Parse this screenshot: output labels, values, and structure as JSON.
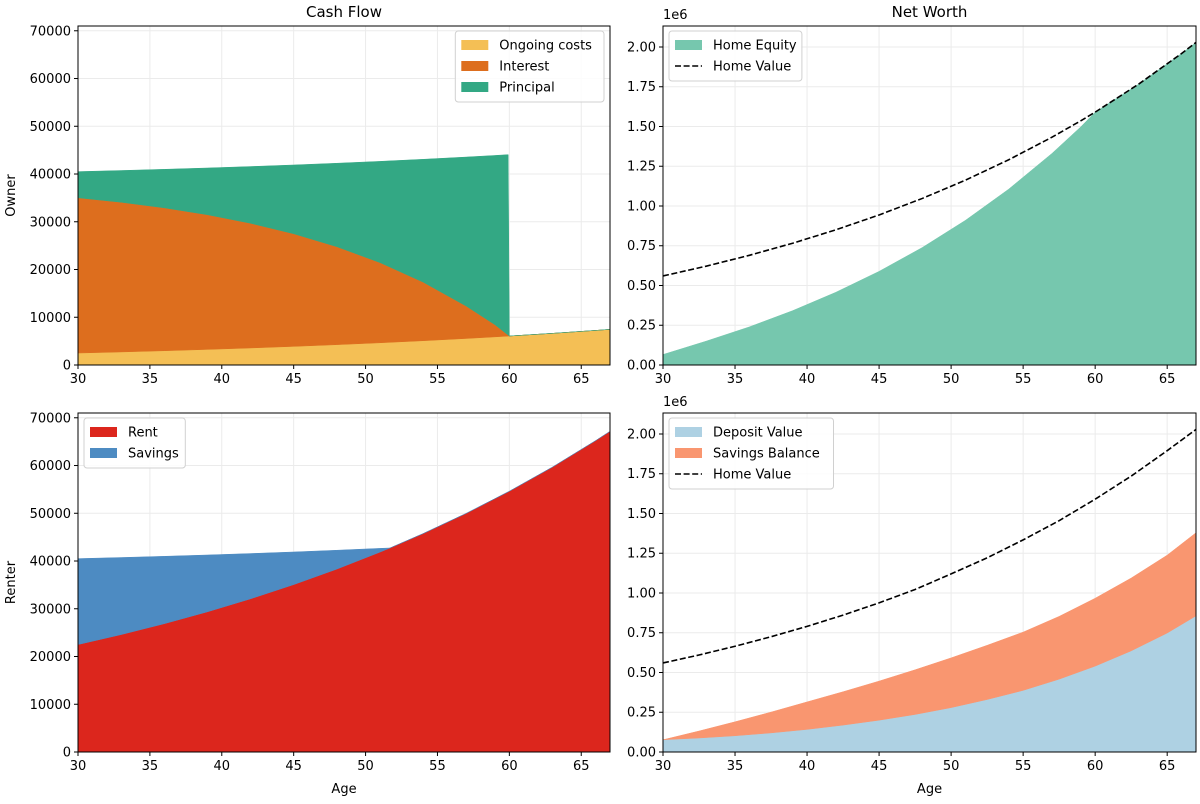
{
  "chart_data": [
    {
      "type": "area",
      "stacked": true,
      "title": "Cash Flow",
      "ylabel": "Owner",
      "xlabel": "",
      "offset_label": "",
      "xlim": [
        30,
        67
      ],
      "ylim": [
        0,
        71000
      ],
      "grid": true,
      "legend": "upper right",
      "xticks": [
        30,
        35,
        40,
        45,
        50,
        55,
        60,
        65
      ],
      "xtick_labels": [
        "30",
        "35",
        "40",
        "45",
        "50",
        "55",
        "60",
        "65"
      ],
      "yticks": [
        0,
        10000,
        20000,
        30000,
        40000,
        50000,
        60000,
        70000
      ],
      "ytick_labels": [
        "0",
        "10000",
        "20000",
        "30000",
        "40000",
        "50000",
        "60000",
        "70000"
      ],
      "x": [
        30,
        33,
        36,
        39,
        42,
        45,
        48,
        51,
        54,
        57,
        59,
        59.92,
        60,
        63,
        66,
        67
      ],
      "series": [
        {
          "name": "Ongoing costs",
          "color": "#f4bf55",
          "values": [
            2500,
            2732,
            2985,
            3262,
            3564,
            3895,
            4256,
            4651,
            5082,
            5553,
            5891,
            6054,
            6068,
            6631,
            7245,
            7463
          ]
        },
        {
          "name": "Interest",
          "color": "#dd6e1e",
          "values": [
            32520,
            31350,
            29930,
            28210,
            26120,
            23590,
            20520,
            16800,
            12280,
            6790,
            2540,
            200,
            0,
            0,
            0,
            0
          ]
        },
        {
          "name": "Principal",
          "color": "#33a884",
          "values": [
            5480,
            6650,
            8070,
            9790,
            11880,
            14410,
            17480,
            21200,
            25720,
            31210,
            35460,
            37800,
            0,
            0,
            0,
            0
          ]
        }
      ],
      "lines": []
    },
    {
      "type": "area",
      "stacked": true,
      "title": "Net Worth",
      "ylabel": "",
      "xlabel": "",
      "offset_label": "1e6",
      "xlim": [
        30,
        67
      ],
      "ylim": [
        0,
        2132000
      ],
      "grid": true,
      "legend": "upper left",
      "xticks": [
        30,
        35,
        40,
        45,
        50,
        55,
        60,
        65
      ],
      "xtick_labels": [
        "30",
        "35",
        "40",
        "45",
        "50",
        "55",
        "60",
        "65"
      ],
      "yticks": [
        0,
        250000,
        500000,
        750000,
        1000000,
        1250000,
        1500000,
        1750000,
        2000000
      ],
      "ytick_labels": [
        "0.00",
        "0.25",
        "0.50",
        "0.75",
        "1.00",
        "1.25",
        "1.50",
        "1.75",
        "2.00"
      ],
      "x": [
        30,
        33,
        36,
        39,
        42,
        45,
        48,
        51,
        54,
        57,
        59,
        60,
        63,
        66,
        67
      ],
      "series": [
        {
          "name": "Home Equity",
          "color": "#76c7ae",
          "values": [
            66000,
            150150,
            239900,
            341700,
            457400,
            588900,
            738900,
            910100,
            1106100,
            1330500,
            1497600,
            1590200,
            1765200,
            1959200,
            2028700
          ]
        }
      ],
      "lines": [
        {
          "name": "Home Value",
          "color": "#000000",
          "style": "dashed",
          "values": [
            560000,
            621600,
            690000,
            765900,
            850200,
            943700,
            1047500,
            1162700,
            1290700,
            1432600,
            1535900,
            1590200,
            1765200,
            1959200,
            2028700
          ]
        }
      ]
    },
    {
      "type": "area",
      "stacked": true,
      "title": "",
      "ylabel": "Renter",
      "xlabel": "Age",
      "offset_label": "",
      "xlim": [
        30,
        67
      ],
      "ylim": [
        0,
        71000
      ],
      "grid": true,
      "legend": "upper left",
      "xticks": [
        30,
        35,
        40,
        45,
        50,
        55,
        60,
        65
      ],
      "xtick_labels": [
        "30",
        "35",
        "40",
        "45",
        "50",
        "55",
        "60",
        "65"
      ],
      "yticks": [
        0,
        10000,
        20000,
        30000,
        40000,
        50000,
        60000,
        70000
      ],
      "ytick_labels": [
        "0",
        "10000",
        "20000",
        "30000",
        "40000",
        "50000",
        "60000",
        "70000"
      ],
      "x": [
        30,
        33,
        36,
        39,
        42,
        45,
        48,
        51,
        51.7,
        54,
        57,
        60,
        63,
        66,
        67
      ],
      "series": [
        {
          "name": "Rent",
          "color": "#dc261d",
          "values": [
            22500,
            24586,
            26866,
            29357,
            32079,
            35053,
            38303,
            41855,
            42730,
            45736,
            49977,
            54611,
            59675,
            65208,
            67164
          ]
        },
        {
          "name": "Savings",
          "color": "#4d8bc2",
          "values": [
            18000,
            16146,
            14119,
            11905,
            9485,
            6842,
            3953,
            796,
            0,
            0,
            0,
            0,
            0,
            0,
            0
          ]
        }
      ],
      "lines": []
    },
    {
      "type": "area",
      "stacked": true,
      "title": "",
      "ylabel": "",
      "xlabel": "Age",
      "offset_label": "1e6",
      "xlim": [
        30,
        67
      ],
      "ylim": [
        0,
        2132000
      ],
      "grid": true,
      "legend": "upper left",
      "xticks": [
        30,
        35,
        40,
        45,
        50,
        55,
        60,
        65
      ],
      "xtick_labels": [
        "30",
        "35",
        "40",
        "45",
        "50",
        "55",
        "60",
        "65"
      ],
      "yticks": [
        0,
        250000,
        500000,
        750000,
        1000000,
        1250000,
        1500000,
        1750000,
        2000000
      ],
      "ytick_labels": [
        "0.00",
        "0.25",
        "0.50",
        "0.75",
        "1.00",
        "1.25",
        "1.50",
        "1.75",
        "2.00"
      ],
      "x": [
        30,
        32.5,
        35,
        37.5,
        40,
        42.5,
        45,
        47.5,
        50,
        52.5,
        55,
        57.5,
        60,
        62.5,
        65,
        67
      ],
      "series": [
        {
          "name": "Deposit Value",
          "color": "#aed1e3",
          "values": [
            77000,
            88000,
            102000,
            120000,
            142000,
            169000,
            200000,
            236000,
            279000,
            330000,
            387500,
            458000,
            540000,
            636000,
            748000,
            856000
          ]
        },
        {
          "name": "Savings Balance",
          "color": "#f99670",
          "values": [
            0,
            44000,
            88000,
            131000,
            173000,
            210000,
            246000,
            281000,
            313000,
            341000,
            366500,
            395000,
            427000,
            458000,
            490000,
            523000
          ]
        }
      ],
      "lines": [
        {
          "name": "Home Value",
          "color": "#000000",
          "style": "dashed",
          "values": [
            560000,
            610000,
            665000,
            725000,
            790000,
            861000,
            938000,
            1022000,
            1120000,
            1221000,
            1334000,
            1455000,
            1590000,
            1735000,
            1895000,
            2028700
          ]
        }
      ]
    }
  ]
}
